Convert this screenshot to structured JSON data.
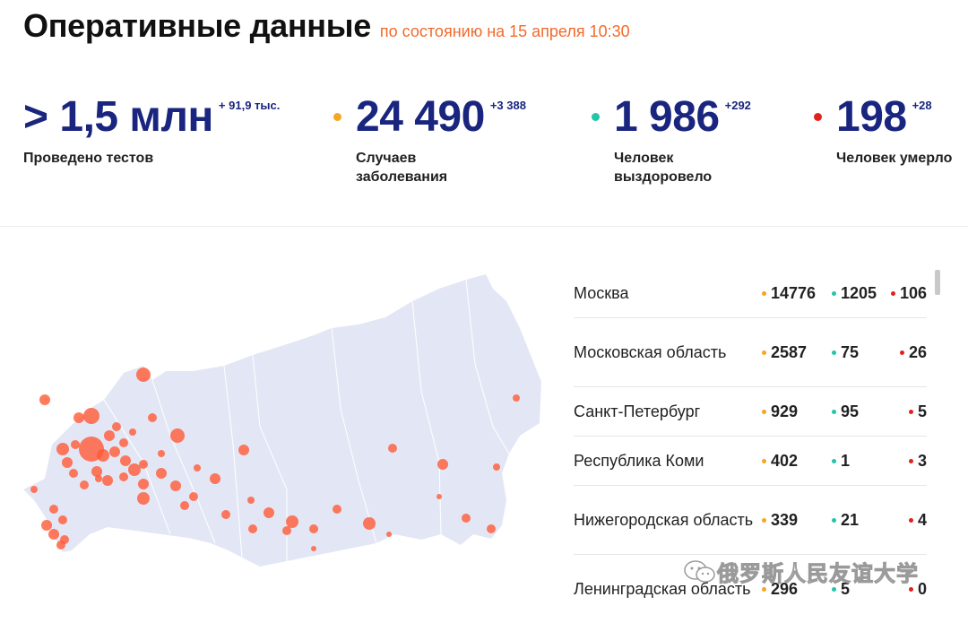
{
  "header": {
    "title": "Оперативные данные",
    "subtitle": "по состоянию на 15 апреля 10:30"
  },
  "stats": [
    {
      "value": "> 1,5 млн",
      "delta": "+ 91,9 тыс.",
      "label": "Проведено тестов",
      "color": ""
    },
    {
      "value": "24 490",
      "delta": "+3 388",
      "label": "Случаев заболевания",
      "color": "#f5a623"
    },
    {
      "value": "1 986",
      "delta": "+292",
      "label": "Человек выздоровело",
      "color": "#1fc6a8"
    },
    {
      "value": "198",
      "delta": "+28",
      "label": "Человек умерло",
      "color": "#e3201b"
    }
  ],
  "regions": [
    {
      "name": "Москва",
      "cases": "14776",
      "recovered": "1205",
      "deaths": "106"
    },
    {
      "name": "Московская область",
      "cases": "2587",
      "recovered": "75",
      "deaths": "26"
    },
    {
      "name": "Санкт-Петербург",
      "cases": "929",
      "recovered": "95",
      "deaths": "5"
    },
    {
      "name": "Республика Коми",
      "cases": "402",
      "recovered": "1",
      "deaths": "3"
    },
    {
      "name": "Нижегородская область",
      "cases": "339",
      "recovered": "21",
      "deaths": "4"
    },
    {
      "name": "Ленинградская область",
      "cases": "296",
      "recovered": "5",
      "deaths": "0"
    }
  ],
  "colors": {
    "cases": "#f5a623",
    "recovered": "#1fc6a8",
    "deaths": "#e3201b",
    "map_land": "#e3e7f5",
    "map_marker": "#ff5a36"
  },
  "watermark": {
    "icon": "wechat-icon",
    "text": "俄罗斯人民友谊大学"
  }
}
